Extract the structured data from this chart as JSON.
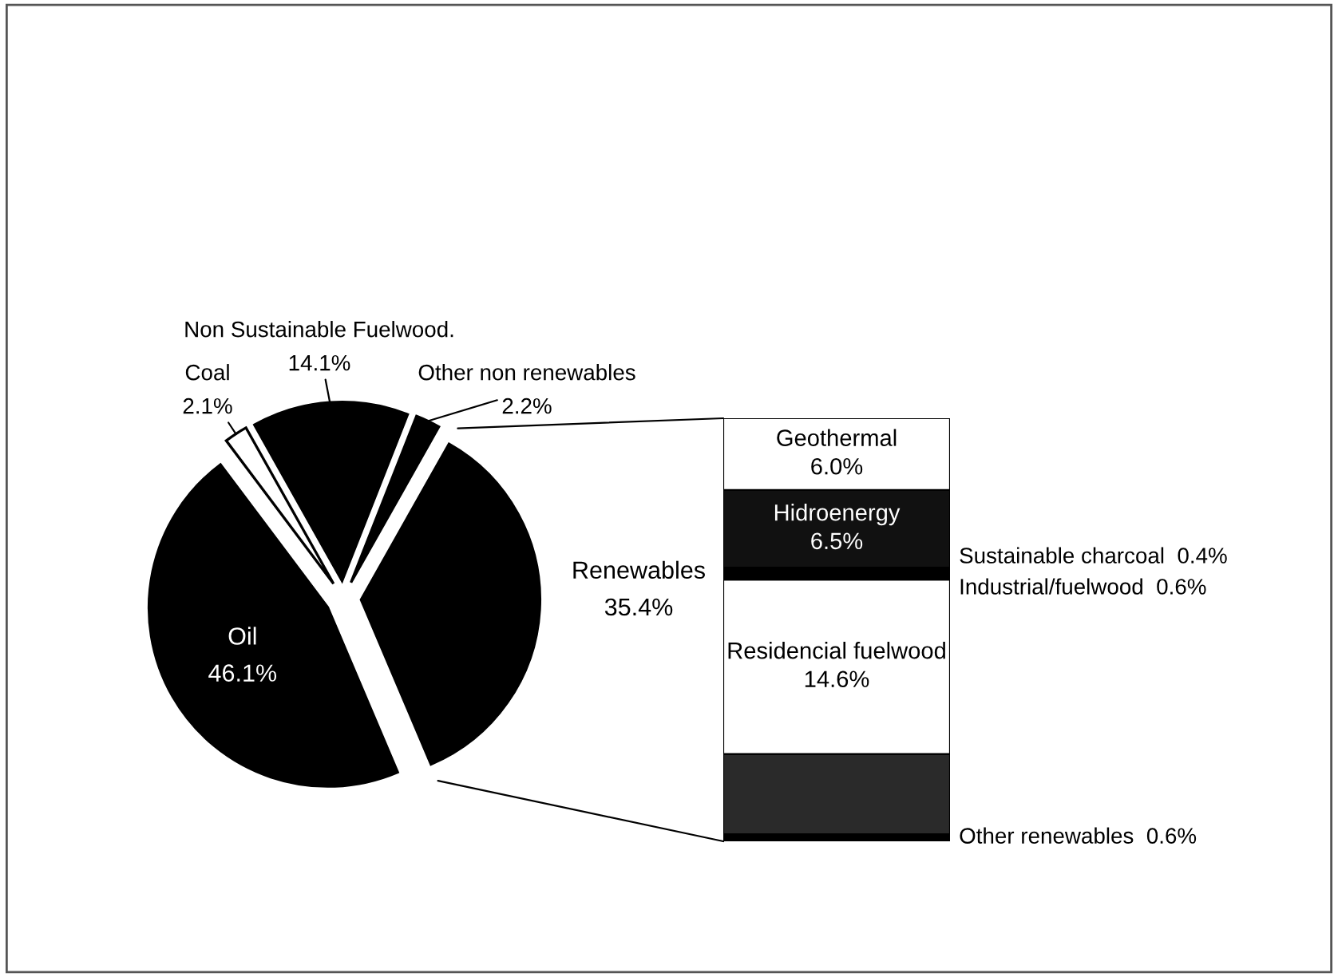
{
  "chart_data": [
    {
      "type": "pie",
      "categories": [
        "Renewables",
        "Other non renewables",
        "Non Sustainable Fuelwood.",
        "Coal",
        "Oil"
      ],
      "values": [
        35.4,
        2.2,
        14.1,
        2.1,
        46.1
      ],
      "value_labels": [
        "35.4%",
        "2.2%",
        "14.1%",
        "2.1%",
        "46.1%"
      ],
      "colors": [
        "#000000",
        "#000000",
        "#000000",
        "#ffffff",
        "#000000"
      ]
    },
    {
      "type": "bar",
      "stacked": true,
      "categories": [
        null
      ],
      "series": [
        {
          "name": "Other renewables",
          "color": "#000000",
          "values": [
            0.6
          ],
          "value_labels": [
            "0.6%"
          ]
        },
        {
          "color": "#2a2a2a",
          "values": [
            6.7
          ],
          "value_labels": [
            null
          ]
        },
        {
          "name": "Residencial fuelwood",
          "color": "#ffffff",
          "values": [
            14.6
          ],
          "value_labels": [
            "14.6%"
          ]
        },
        {
          "name": "Industrial/fuelwood",
          "color": "#000000",
          "values": [
            0.6
          ],
          "value_labels": [
            "0.6%"
          ]
        },
        {
          "name": "Sustainable charcoal",
          "color": "#000000",
          "values": [
            0.4
          ],
          "value_labels": [
            "0.4%"
          ]
        },
        {
          "name": "Hidroenergy",
          "color": "#111111",
          "values": [
            6.5
          ],
          "value_labels": [
            "6.5%"
          ]
        },
        {
          "name": "Geothermal",
          "color": "#ffffff",
          "values": [
            6.0
          ],
          "value_labels": [
            "6.0%"
          ]
        }
      ]
    }
  ]
}
